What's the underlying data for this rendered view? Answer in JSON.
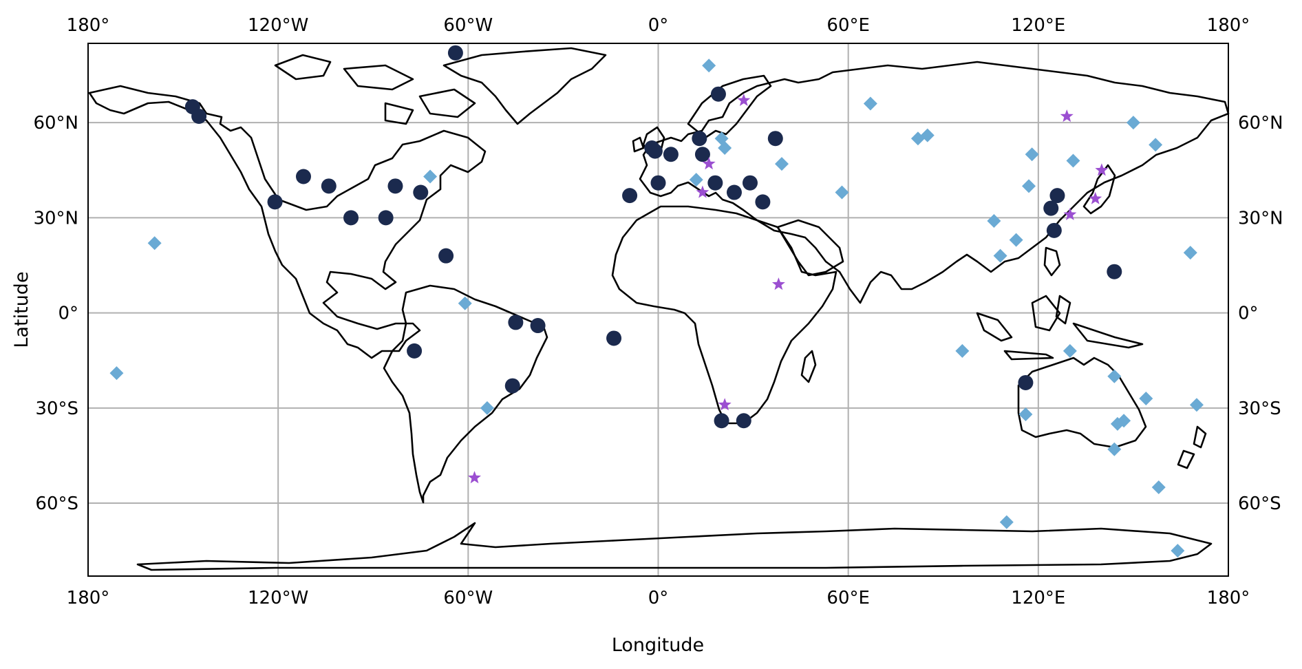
{
  "axes": {
    "xlabel": "Longitude",
    "ylabel": "Latitude",
    "xlim": [
      -180,
      180
    ],
    "ylim": [
      -83,
      85
    ],
    "x_ticks": [
      {
        "value": -180,
        "label": "180°"
      },
      {
        "value": -120,
        "label": "120°W"
      },
      {
        "value": -60,
        "label": "60°W"
      },
      {
        "value": 0,
        "label": "0°"
      },
      {
        "value": 60,
        "label": "60°E"
      },
      {
        "value": 120,
        "label": "120°E"
      },
      {
        "value": 180,
        "label": "180°"
      }
    ],
    "y_ticks": [
      {
        "value": 60,
        "label": "60°N"
      },
      {
        "value": 30,
        "label": "30°N"
      },
      {
        "value": 0,
        "label": "0°"
      },
      {
        "value": -30,
        "label": "30°S"
      },
      {
        "value": -60,
        "label": "60°S"
      }
    ],
    "grid": true
  },
  "markers": {
    "circle": {
      "color": "#1b2a4e"
    },
    "diamond": {
      "color": "#6aaad4"
    },
    "star": {
      "color": "#9b4fd1"
    }
  },
  "points": {
    "circle": [
      [
        -147,
        65
      ],
      [
        -145,
        62
      ],
      [
        -64,
        82
      ],
      [
        -121,
        35
      ],
      [
        -112,
        43
      ],
      [
        -104,
        40
      ],
      [
        -97,
        30
      ],
      [
        -86,
        30
      ],
      [
        -83,
        40
      ],
      [
        -75,
        38
      ],
      [
        -67,
        18
      ],
      [
        -77,
        -12
      ],
      [
        -45,
        -3
      ],
      [
        -38,
        -4
      ],
      [
        -46,
        -23
      ],
      [
        -14,
        -8
      ],
      [
        -9,
        37
      ],
      [
        -2,
        52
      ],
      [
        -1,
        51
      ],
      [
        0,
        41
      ],
      [
        4,
        50
      ],
      [
        13,
        55
      ],
      [
        14,
        50
      ],
      [
        18,
        41
      ],
      [
        19,
        69
      ],
      [
        24,
        38
      ],
      [
        29,
        41
      ],
      [
        33,
        35
      ],
      [
        37,
        55
      ],
      [
        20,
        -34
      ],
      [
        27,
        -34
      ],
      [
        116,
        -22
      ],
      [
        124,
        33
      ],
      [
        126,
        37
      ],
      [
        125,
        26
      ],
      [
        144,
        13
      ]
    ],
    "diamond": [
      [
        -159,
        22
      ],
      [
        -171,
        -19
      ],
      [
        -72,
        43
      ],
      [
        -61,
        3
      ],
      [
        -54,
        -30
      ],
      [
        16,
        78
      ],
      [
        12,
        42
      ],
      [
        20,
        55
      ],
      [
        21,
        52
      ],
      [
        39,
        47
      ],
      [
        58,
        38
      ],
      [
        67,
        66
      ],
      [
        82,
        55
      ],
      [
        85,
        56
      ],
      [
        96,
        -12
      ],
      [
        106,
        29
      ],
      [
        108,
        18
      ],
      [
        113,
        23
      ],
      [
        117,
        40
      ],
      [
        118,
        50
      ],
      [
        116,
        -32
      ],
      [
        110,
        -66
      ],
      [
        131,
        48
      ],
      [
        130,
        -12
      ],
      [
        150,
        60
      ],
      [
        157,
        53
      ],
      [
        144,
        -20
      ],
      [
        154,
        -27
      ],
      [
        145,
        -35
      ],
      [
        147,
        -34
      ],
      [
        144,
        -43
      ],
      [
        168,
        19
      ],
      [
        170,
        -29
      ],
      [
        158,
        -55
      ],
      [
        164,
        -75
      ]
    ],
    "star": [
      [
        -58,
        -52
      ],
      [
        14,
        38
      ],
      [
        16,
        47
      ],
      [
        27,
        67
      ],
      [
        21,
        -29
      ],
      [
        38,
        9
      ],
      [
        129,
        62
      ],
      [
        130,
        31
      ],
      [
        140,
        45
      ],
      [
        138,
        36
      ]
    ]
  }
}
